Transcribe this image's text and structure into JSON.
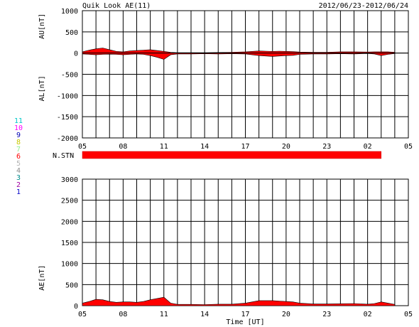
{
  "header": {
    "title": "Quik Look AE(11)",
    "date_range": "2012/06/23-2012/06/24"
  },
  "stn_label": "N.STN",
  "stn_bar_color": "#ff0000",
  "fill_color": "#ff0000",
  "station_key": {
    "items": [
      {
        "label": "11",
        "color": "#00c8c8"
      },
      {
        "label": "10",
        "color": "#ff00ff"
      },
      {
        "label": "9",
        "color": "#0000b4"
      },
      {
        "label": "8",
        "color": "#c8c800"
      },
      {
        "label": "7",
        "color": "#90ee90"
      },
      {
        "label": "6",
        "color": "#ff0000"
      },
      {
        "label": "5",
        "color": "#b4b4b4"
      },
      {
        "label": "4",
        "color": "#8c8c8c"
      },
      {
        "label": "3",
        "color": "#008c8c"
      },
      {
        "label": "2",
        "color": "#a000a0"
      },
      {
        "label": "1",
        "color": "#0000c8"
      }
    ]
  },
  "chart_data": [
    {
      "type": "area",
      "panel": "AU/AL",
      "ylabel_top": "AU[nT]",
      "ylabel_bottom": "AL[nT]",
      "xlabel": "",
      "ylim": [
        -2000,
        1000
      ],
      "yticks": [
        1000,
        500,
        0,
        -500,
        -1000,
        -1500,
        -2000
      ],
      "xlim": [
        5,
        29
      ],
      "xticks": [
        "05",
        "08",
        "11",
        "14",
        "17",
        "20",
        "23",
        "02",
        "05"
      ],
      "grid": true,
      "au": {
        "x": [
          5,
          5.5,
          6,
          6.5,
          7,
          7.5,
          8,
          8.5,
          9,
          9.5,
          10,
          10.5,
          11,
          11.5,
          12,
          13,
          14,
          15,
          16,
          17,
          17.5,
          18,
          18.5,
          19,
          19.5,
          20,
          20.5,
          21,
          22,
          23,
          24,
          25,
          26,
          26.5,
          27,
          27.5,
          28
        ],
        "values": [
          30,
          70,
          100,
          120,
          80,
          40,
          30,
          50,
          60,
          70,
          80,
          60,
          40,
          20,
          10,
          10,
          10,
          15,
          20,
          30,
          40,
          50,
          45,
          40,
          45,
          40,
          35,
          25,
          20,
          20,
          30,
          30,
          25,
          30,
          30,
          30,
          20
        ]
      },
      "al": {
        "x": [
          5,
          5.5,
          6,
          6.5,
          7,
          7.5,
          8,
          8.5,
          9,
          9.5,
          10,
          10.5,
          11,
          11.5,
          12,
          13,
          14,
          15,
          16,
          17,
          17.5,
          18,
          18.5,
          19,
          19.5,
          20,
          20.5,
          21,
          22,
          23,
          24,
          25,
          26,
          26.5,
          27,
          27.5,
          28
        ],
        "values": [
          -20,
          -30,
          -40,
          -30,
          -25,
          -30,
          -40,
          -30,
          -20,
          -30,
          -60,
          -100,
          -150,
          -40,
          -20,
          -20,
          -15,
          -20,
          -15,
          -20,
          -40,
          -60,
          -70,
          -80,
          -70,
          -60,
          -55,
          -30,
          -20,
          -20,
          -15,
          -20,
          -10,
          -20,
          -60,
          -30,
          -10
        ]
      }
    },
    {
      "type": "area",
      "panel": "AE",
      "ylabel": "AE[nT]",
      "xlabel": "Time [UT]",
      "ylim": [
        0,
        3000
      ],
      "yticks": [
        3000,
        2500,
        2000,
        1500,
        1000,
        500,
        0
      ],
      "xlim": [
        5,
        29
      ],
      "xticks": [
        "05",
        "08",
        "11",
        "14",
        "17",
        "20",
        "23",
        "02",
        "05"
      ],
      "grid": true,
      "ae": {
        "x": [
          5,
          5.5,
          6,
          6.5,
          7,
          7.5,
          8,
          8.5,
          9,
          9.5,
          10,
          10.5,
          11,
          11.5,
          12,
          13,
          14,
          15,
          16,
          17,
          17.5,
          18,
          18.5,
          19,
          19.5,
          20,
          20.5,
          21,
          22,
          23,
          24,
          25,
          26,
          26.5,
          27,
          27.5,
          28
        ],
        "values": [
          60,
          100,
          150,
          140,
          100,
          80,
          90,
          90,
          80,
          100,
          140,
          170,
          200,
          60,
          30,
          30,
          25,
          35,
          35,
          60,
          90,
          120,
          120,
          120,
          110,
          100,
          90,
          60,
          40,
          40,
          45,
          50,
          35,
          50,
          90,
          60,
          30
        ]
      },
      "data_end_x": 27
    }
  ]
}
